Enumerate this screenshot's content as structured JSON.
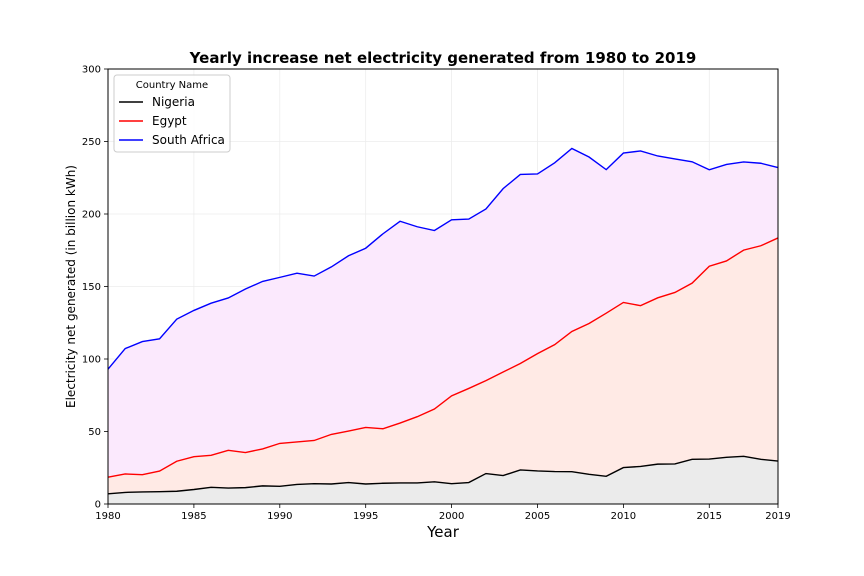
{
  "chart_data": {
    "type": "area",
    "title": "Yearly increase net electricity generated from 1980 to 2019",
    "xlabel": "Year",
    "ylabel": "Electricity net generated (in billion kWh)",
    "xlim": [
      1980,
      2019
    ],
    "ylim": [
      0,
      300
    ],
    "x_ticks": [
      1980,
      1985,
      1990,
      1995,
      2000,
      2005,
      2010,
      2015,
      2019
    ],
    "y_ticks": [
      0,
      50,
      100,
      150,
      200,
      250,
      300
    ],
    "grid": true,
    "legend": {
      "title": "Country Name",
      "placement": "top-left"
    },
    "x": [
      1980,
      1981,
      1982,
      1983,
      1984,
      1985,
      1986,
      1987,
      1988,
      1989,
      1990,
      1991,
      1992,
      1993,
      1994,
      1995,
      1996,
      1997,
      1998,
      1999,
      2000,
      2001,
      2002,
      2003,
      2004,
      2005,
      2006,
      2007,
      2008,
      2009,
      2010,
      2011,
      2012,
      2013,
      2014,
      2015,
      2016,
      2017,
      2018,
      2019
    ],
    "series": [
      {
        "name": "Nigeria",
        "color": "#000000",
        "fill": "#ebebeb",
        "values": [
          7,
          8,
          8.3,
          8.5,
          8.8,
          10,
          11.5,
          11,
          11.3,
          12.5,
          12.2,
          13.5,
          14,
          13.8,
          14.8,
          13.8,
          14.3,
          14.5,
          14.5,
          15.3,
          14,
          14.8,
          21,
          19.6,
          23.5,
          22.8,
          22.4,
          22.3,
          20.5,
          19.1,
          25.1,
          25.9,
          27.5,
          27.6,
          30.8,
          31,
          32.2,
          32.9,
          30.8,
          29.6
        ]
      },
      {
        "name": "Egypt",
        "color": "#ff0000",
        "fill": "#ffeae5",
        "values": [
          18.5,
          20.7,
          20.2,
          22.7,
          29.5,
          32.6,
          33.6,
          37,
          35.5,
          38,
          41.8,
          42.8,
          43.8,
          48,
          50.3,
          52.8,
          51.9,
          55.8,
          60.2,
          65.5,
          74.6,
          79.7,
          85.1,
          91,
          96.9,
          103.7,
          109.9,
          119,
          124.5,
          131.6,
          139,
          136.8,
          142.2,
          145.9,
          152.3,
          164,
          167.6,
          175.1,
          178.1,
          183.5
        ]
      },
      {
        "name": "South Africa",
        "color": "#0000ff",
        "fill": "#fbe9fd",
        "values": [
          93,
          107.2,
          112,
          113.9,
          127.5,
          133.5,
          138.5,
          142.1,
          148.3,
          153.5,
          156.3,
          159.2,
          157.2,
          163.5,
          171.2,
          176.4,
          186.3,
          195,
          191.2,
          188.6,
          196,
          196.5,
          203.5,
          217.5,
          227.3,
          227.6,
          235.3,
          245.2,
          239.3,
          230.6,
          242,
          243.5,
          240,
          238,
          236,
          230.5,
          234.2,
          235.9,
          235,
          232
        ]
      }
    ]
  }
}
